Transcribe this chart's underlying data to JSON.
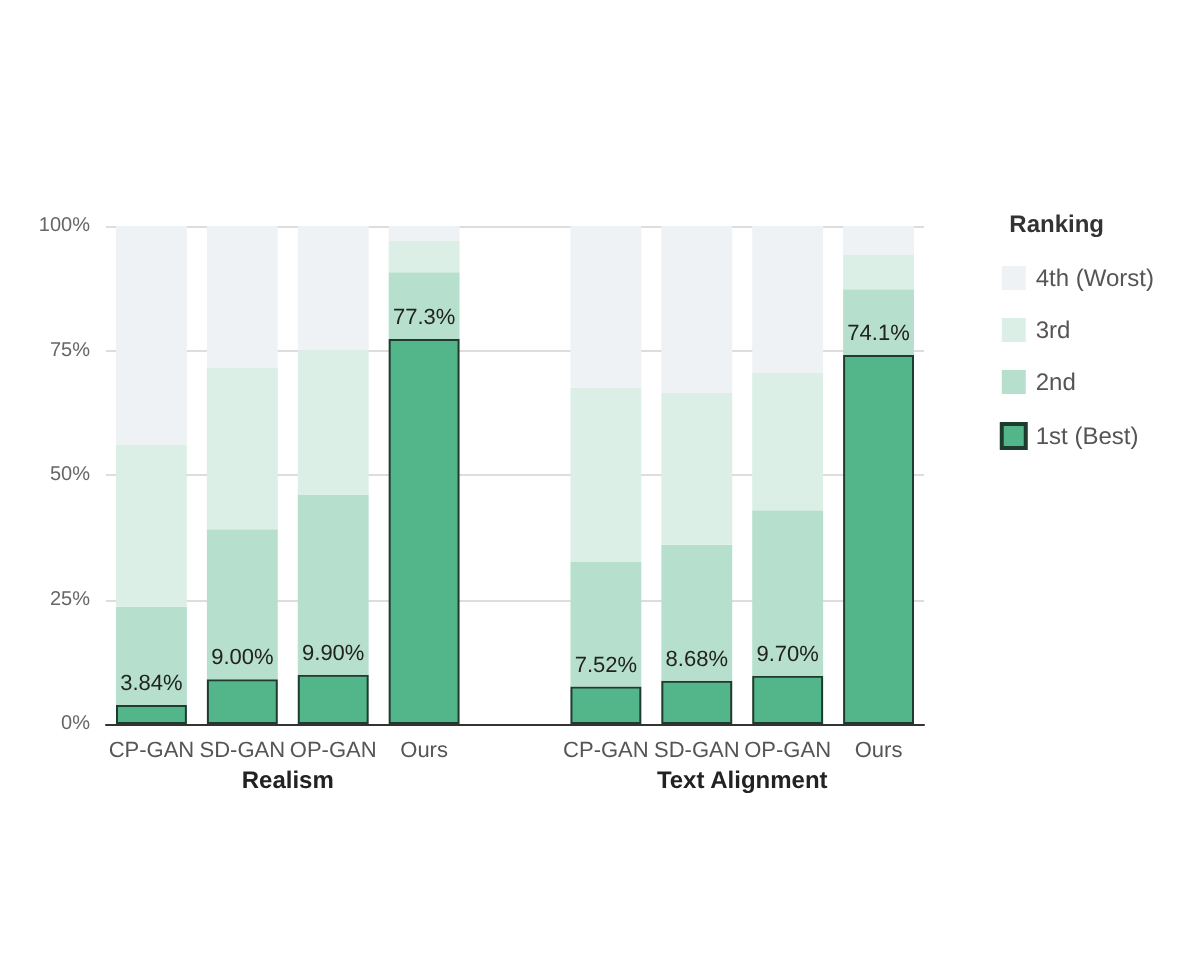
{
  "chart_data": {
    "type": "bar",
    "stacked": true,
    "categories": [
      "CP-GAN",
      "SD-GAN",
      "OP-GAN",
      "Ours",
      null,
      "CP-GAN",
      "SD-GAN",
      "OP-GAN",
      "Ours"
    ],
    "series": [
      {
        "name": "1st (Best)",
        "color": "#52b68a",
        "values": [
          3.84,
          9.0,
          9.9,
          77.3,
          null,
          7.52,
          8.68,
          9.7,
          74.1
        ],
        "value_labels": [
          "3.84%",
          "9.00%",
          "9.90%",
          "77.3%",
          null,
          "7.52%",
          "8.68%",
          "9.70%",
          "74.1%"
        ]
      },
      {
        "name": "2nd",
        "color": "#b6e0cd",
        "values": [
          19.7,
          30.1,
          36.2,
          13.4,
          null,
          25.0,
          27.3,
          33.2,
          13.2
        ]
      },
      {
        "name": "3rd",
        "color": "#dcefe6",
        "values": [
          32.6,
          32.5,
          29.0,
          6.3,
          null,
          35.0,
          30.5,
          27.7,
          6.9
        ]
      },
      {
        "name": "4th (Worst)",
        "color": "#eef2f4",
        "values": [
          43.9,
          28.4,
          24.9,
          3.0,
          null,
          32.5,
          33.5,
          29.4,
          5.8
        ]
      }
    ],
    "annotations": [
      "Realism",
      "Text Alignment"
    ],
    "legend_title": "Ranking",
    "legend": "right",
    "grid": "y",
    "ylim": [
      0,
      100
    ],
    "yticks": [
      {
        "value": 0,
        "label": "0%"
      },
      {
        "value": 25,
        "label": "25%"
      },
      {
        "value": 50,
        "label": "50%"
      },
      {
        "value": 75,
        "label": "75%"
      },
      {
        "value": 100,
        "label": "100%"
      }
    ]
  }
}
